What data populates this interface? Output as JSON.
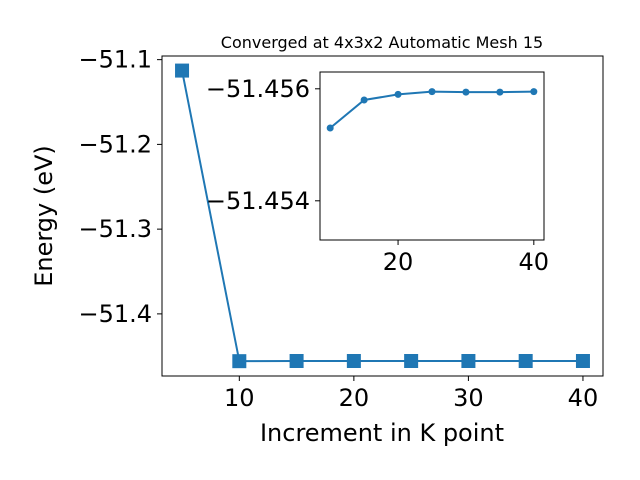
{
  "chart_data": [
    {
      "type": "line",
      "title": "Converged at 4x3x2 Automatic Mesh 15",
      "xlabel": "Increment in K point",
      "ylabel": "Energy (eV)",
      "xlim": [
        3.25,
        41.75
      ],
      "ylim": [
        -51.4733,
        -51.0957
      ],
      "x_ticks": [
        10,
        20,
        30,
        40
      ],
      "x_tick_labels": [
        "10",
        "20",
        "30",
        "40"
      ],
      "y_ticks": [
        -51.4,
        -51.3,
        -51.2,
        -51.1
      ],
      "y_tick_labels": [
        "−51.4",
        "−51.3",
        "−51.2",
        "−51.1"
      ],
      "marker": "square",
      "grid": false,
      "series": [
        {
          "color": "#1f77b4",
          "x": [
            5,
            10,
            15,
            20,
            25,
            30,
            35,
            40
          ],
          "y": [
            -51.1129,
            -51.4558,
            -51.4556,
            -51.4556,
            -51.4556,
            -51.4556,
            -51.4556,
            -51.4556
          ]
        }
      ]
    },
    {
      "type": "line",
      "title": "",
      "xlabel": "",
      "ylabel": "",
      "xlim": [
        8.5,
        41.5
      ],
      "ylim": [
        -51.4533,
        -51.4563
      ],
      "x_ticks": [
        20,
        40
      ],
      "x_tick_labels": [
        "20",
        "40"
      ],
      "y_ticks": [
        -51.456,
        -51.454
      ],
      "y_tick_labels": [
        "−51.456",
        "−51.454"
      ],
      "marker": "circle",
      "grid": false,
      "series": [
        {
          "color": "#1f77b4",
          "x": [
            10,
            15,
            20,
            25,
            30,
            35,
            40
          ],
          "y": [
            -51.4553,
            -51.4558,
            -51.4559,
            -51.45595,
            -51.45594,
            -51.45594,
            -51.45595
          ]
        }
      ]
    }
  ]
}
